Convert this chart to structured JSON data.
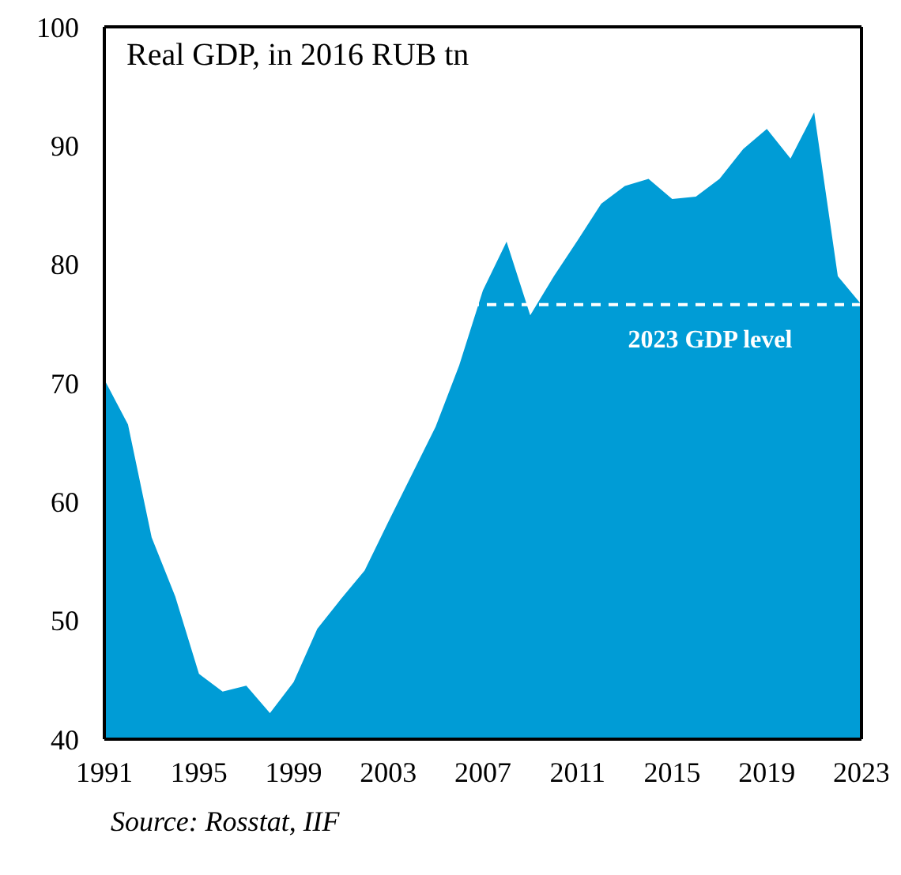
{
  "chart_data": {
    "type": "area",
    "title": "Real GDP, in 2016 RUB tn",
    "annotations": [
      "Source: Rosstat, IIF"
    ],
    "x": [
      1991,
      1992,
      1993,
      1994,
      1995,
      1996,
      1997,
      1998,
      1999,
      2000,
      2001,
      2002,
      2003,
      2004,
      2005,
      2006,
      2007,
      2008,
      2009,
      2010,
      2011,
      2012,
      2013,
      2014,
      2015,
      2016,
      2017,
      2018,
      2019,
      2020,
      2021,
      2022,
      2023
    ],
    "series": [
      {
        "color": "#009cd6",
        "values": [
          70.3,
          66.5,
          57,
          52,
          45.5,
          44,
          44.5,
          42.2,
          44.8,
          49.3,
          51.8,
          54.2,
          58.3,
          62.3,
          66.3,
          71.5,
          77.8,
          81.9,
          75.7,
          79,
          82,
          85.1,
          86.6,
          87.2,
          85.5,
          85.7,
          87.2,
          89.7,
          91.4,
          88.9,
          92.8,
          79,
          76.6
        ]
      }
    ],
    "xlim": [
      1991,
      2023
    ],
    "xticks": [
      1991,
      1995,
      1999,
      2003,
      2007,
      2011,
      2015,
      2019,
      2023
    ],
    "ylim": [
      40,
      100
    ],
    "yticks": [
      40,
      50,
      60,
      70,
      80,
      90,
      100
    ],
    "ref_lines": [
      {
        "axis": "y",
        "value": 76.6,
        "label": "2023 GDP level",
        "color": "#ffffff",
        "line_style": "dashed"
      }
    ],
    "grid": false,
    "legend": false
  }
}
